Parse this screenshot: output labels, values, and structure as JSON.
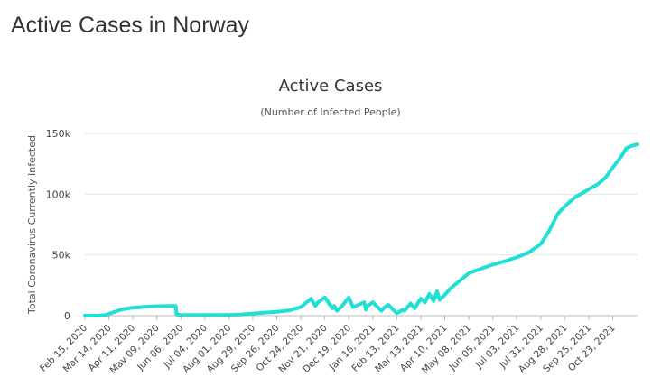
{
  "page": {
    "heading": "Active Cases in Norway"
  },
  "chart_data": {
    "type": "line",
    "title": "Active Cases",
    "subtitle": "(Number of Infected People)",
    "xlabel": "",
    "ylabel": "Total Coronavirus Currently Infected",
    "ylim": [
      0,
      150000
    ],
    "y_ticks": [
      0,
      50000,
      100000,
      150000
    ],
    "y_tick_labels": [
      "0",
      "50k",
      "100k",
      "150k"
    ],
    "x_tick_labels": [
      "Feb 15, 2020",
      "Mar 14, 2020",
      "Apr 11, 2020",
      "May 09, 2020",
      "Jun 06, 2020",
      "Jul 04, 2020",
      "Aug 01, 2020",
      "Aug 29, 2020",
      "Sep 26, 2020",
      "Oct 24, 2020",
      "Nov 21, 2020",
      "Dec 19, 2020",
      "Jan 16, 2021",
      "Feb 13, 2021",
      "Mar 13, 2021",
      "Apr 10, 2021",
      "May 08, 2021",
      "Jun 05, 2021",
      "Jul 03, 2021",
      "Jul 31, 2021",
      "Aug 28, 2021",
      "Sep 25, 2021",
      "Oct 23, 2021"
    ],
    "grid": "horizontal",
    "line_color": "#22dfd6",
    "series": [
      {
        "x": [
          "Feb 15, 2020",
          "Mar 01, 2020",
          "Mar 10, 2020",
          "Mar 14, 2020",
          "Mar 24, 2020",
          "Apr 01, 2020",
          "Apr 11, 2020",
          "Apr 25, 2020",
          "May 09, 2020",
          "May 20, 2020",
          "May 31, 2020",
          "Jun 01, 2020",
          "Jun 06, 2020",
          "Jul 04, 2020",
          "Aug 01, 2020",
          "Aug 15, 2020",
          "Aug 29, 2020",
          "Sep 12, 2020",
          "Sep 26, 2020",
          "Oct 10, 2020",
          "Oct 24, 2020",
          "Nov 05, 2020",
          "Nov 10, 2020",
          "Nov 13, 2020",
          "Nov 21, 2020",
          "Nov 30, 2020",
          "Dec 02, 2020",
          "Dec 05, 2020",
          "Dec 10, 2020",
          "Dec 19, 2020",
          "Dec 24, 2020",
          "Jan 06, 2021",
          "Jan 08, 2021",
          "Jan 10, 2021",
          "Jan 16, 2021",
          "Jan 26, 2021",
          "Jan 30, 2021",
          "Feb 03, 2021",
          "Feb 13, 2021",
          "Feb 20, 2021",
          "Feb 22, 2021",
          "Mar 01, 2021",
          "Mar 06, 2021",
          "Mar 13, 2021",
          "Mar 18, 2021",
          "Mar 23, 2021",
          "Mar 28, 2021",
          "Apr 01, 2021",
          "Apr 04, 2021",
          "Apr 10, 2021",
          "Apr 16, 2021",
          "Apr 28, 2021",
          "May 08, 2021",
          "May 20, 2021",
          "Jun 05, 2021",
          "Jun 20, 2021",
          "Jul 03, 2021",
          "Jul 17, 2021",
          "Jul 31, 2021",
          "Aug 10, 2021",
          "Aug 20, 2021",
          "Aug 28, 2021",
          "Sep 05, 2021",
          "Sep 10, 2021",
          "Sep 18, 2021",
          "Sep 25, 2021",
          "Oct 05, 2021",
          "Oct 15, 2021",
          "Oct 23, 2021",
          "Nov 01, 2021",
          "Nov 08, 2021",
          "Nov 15, 2021",
          "Nov 21, 2021"
        ],
        "values": [
          0,
          0,
          500,
          1500,
          4000,
          5500,
          6500,
          7200,
          7800,
          8000,
          8000,
          1000,
          700,
          600,
          700,
          900,
          1800,
          2500,
          3200,
          4200,
          7000,
          14000,
          8000,
          11000,
          15000,
          6000,
          8000,
          4000,
          7000,
          15000,
          7000,
          11000,
          5000,
          8000,
          11000,
          4000,
          7000,
          9000,
          2000,
          5000,
          4000,
          10000,
          6000,
          14000,
          11000,
          18000,
          12000,
          20000,
          13000,
          17000,
          22000,
          29000,
          35000,
          38000,
          42000,
          45000,
          48000,
          52000,
          59000,
          70000,
          84000,
          90000,
          95000,
          98000,
          101000,
          104000,
          108000,
          114000,
          122000,
          130000,
          138000,
          140000,
          141000
        ]
      }
    ]
  }
}
